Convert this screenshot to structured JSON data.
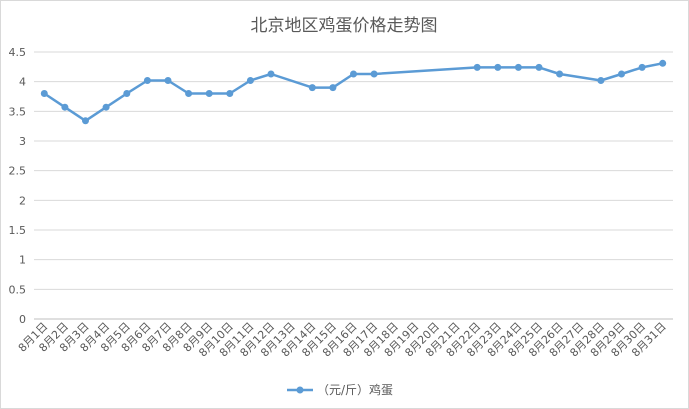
{
  "chart_data": {
    "type": "line",
    "title": "北京地区鸡蛋价格走势图",
    "xlabel": "",
    "ylabel": "",
    "ylim": [
      0,
      4.5
    ],
    "yticks": [
      "0",
      "0.5",
      "1",
      "1.5",
      "2",
      "2.5",
      "3",
      "3.5",
      "4",
      "4.5"
    ],
    "grid": true,
    "legend_position": "bottom",
    "categories": [
      "8月1日",
      "8月2日",
      "8月3日",
      "8月4日",
      "8月5日",
      "8月6日",
      "8月7日",
      "8月8日",
      "8月9日",
      "8月10日",
      "8月11日",
      "8月12日",
      "8月13日",
      "8月14日",
      "8月15日",
      "8月16日",
      "8月17日",
      "8月18日",
      "8月19日",
      "8月20日",
      "8月21日",
      "8月22日",
      "8月23日",
      "8月24日",
      "8月25日",
      "8月26日",
      "8月27日",
      "8月28日",
      "8月29日",
      "8月30日",
      "8月31日"
    ],
    "series": [
      {
        "name": "（元/斤）鸡蛋",
        "color": "#5B9BD5",
        "values": [
          3.8,
          3.57,
          3.34,
          3.57,
          3.8,
          4.02,
          4.02,
          3.8,
          3.8,
          3.8,
          4.02,
          4.13,
          null,
          3.9,
          3.9,
          4.13,
          4.13,
          null,
          null,
          null,
          null,
          4.24,
          4.24,
          4.24,
          4.24,
          4.13,
          null,
          4.02,
          4.13,
          4.24,
          4.31
        ]
      }
    ]
  }
}
